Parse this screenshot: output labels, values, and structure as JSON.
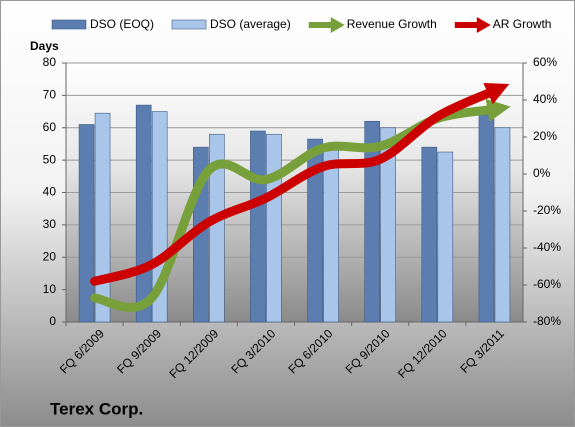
{
  "chart_data": {
    "type": "bar",
    "title": "Terex Corp.",
    "y_label": "Days",
    "categories": [
      "FQ 6/2009",
      "FQ 9/2009",
      "FQ 12/2009",
      "FQ 3/2010",
      "FQ 6/2010",
      "FQ 9/2010",
      "FQ 12/2010",
      "FQ 3/2011"
    ],
    "series": [
      {
        "name": "DSO (EOQ)",
        "type": "bar",
        "color": "#5b7db0",
        "values": [
          61,
          67,
          54,
          59,
          56.5,
          62,
          54,
          64
        ]
      },
      {
        "name": "DSO (average)",
        "type": "bar",
        "color": "#a9c6ea",
        "values": [
          64.5,
          65,
          58,
          58,
          55,
          60,
          52.5,
          60
        ]
      },
      {
        "name": "Revenue Growth",
        "type": "line",
        "axis": "y2",
        "color": "#77a03b",
        "values": [
          -67,
          -67,
          2,
          -3,
          14,
          15,
          30,
          35
        ]
      },
      {
        "name": "AR Growth",
        "type": "line",
        "axis": "y2",
        "color": "#cc0000",
        "values": [
          -58,
          -49,
          -26,
          -13,
          4,
          8,
          31,
          45
        ]
      }
    ],
    "ylim": [
      0,
      80
    ],
    "yticks": [
      0,
      10,
      20,
      30,
      40,
      50,
      60,
      70,
      80
    ],
    "y2lim": [
      -80,
      60
    ],
    "y2ticks": [
      {
        "value": -80,
        "label": "-80%"
      },
      {
        "value": -60,
        "label": "-60%"
      },
      {
        "value": -40,
        "label": "-40%"
      },
      {
        "value": -20,
        "label": "-20%"
      },
      {
        "value": 0,
        "label": "0%"
      },
      {
        "value": 20,
        "label": "20%"
      },
      {
        "value": 40,
        "label": "40%"
      },
      {
        "value": 60,
        "label": "60%"
      }
    ],
    "grid": true
  }
}
